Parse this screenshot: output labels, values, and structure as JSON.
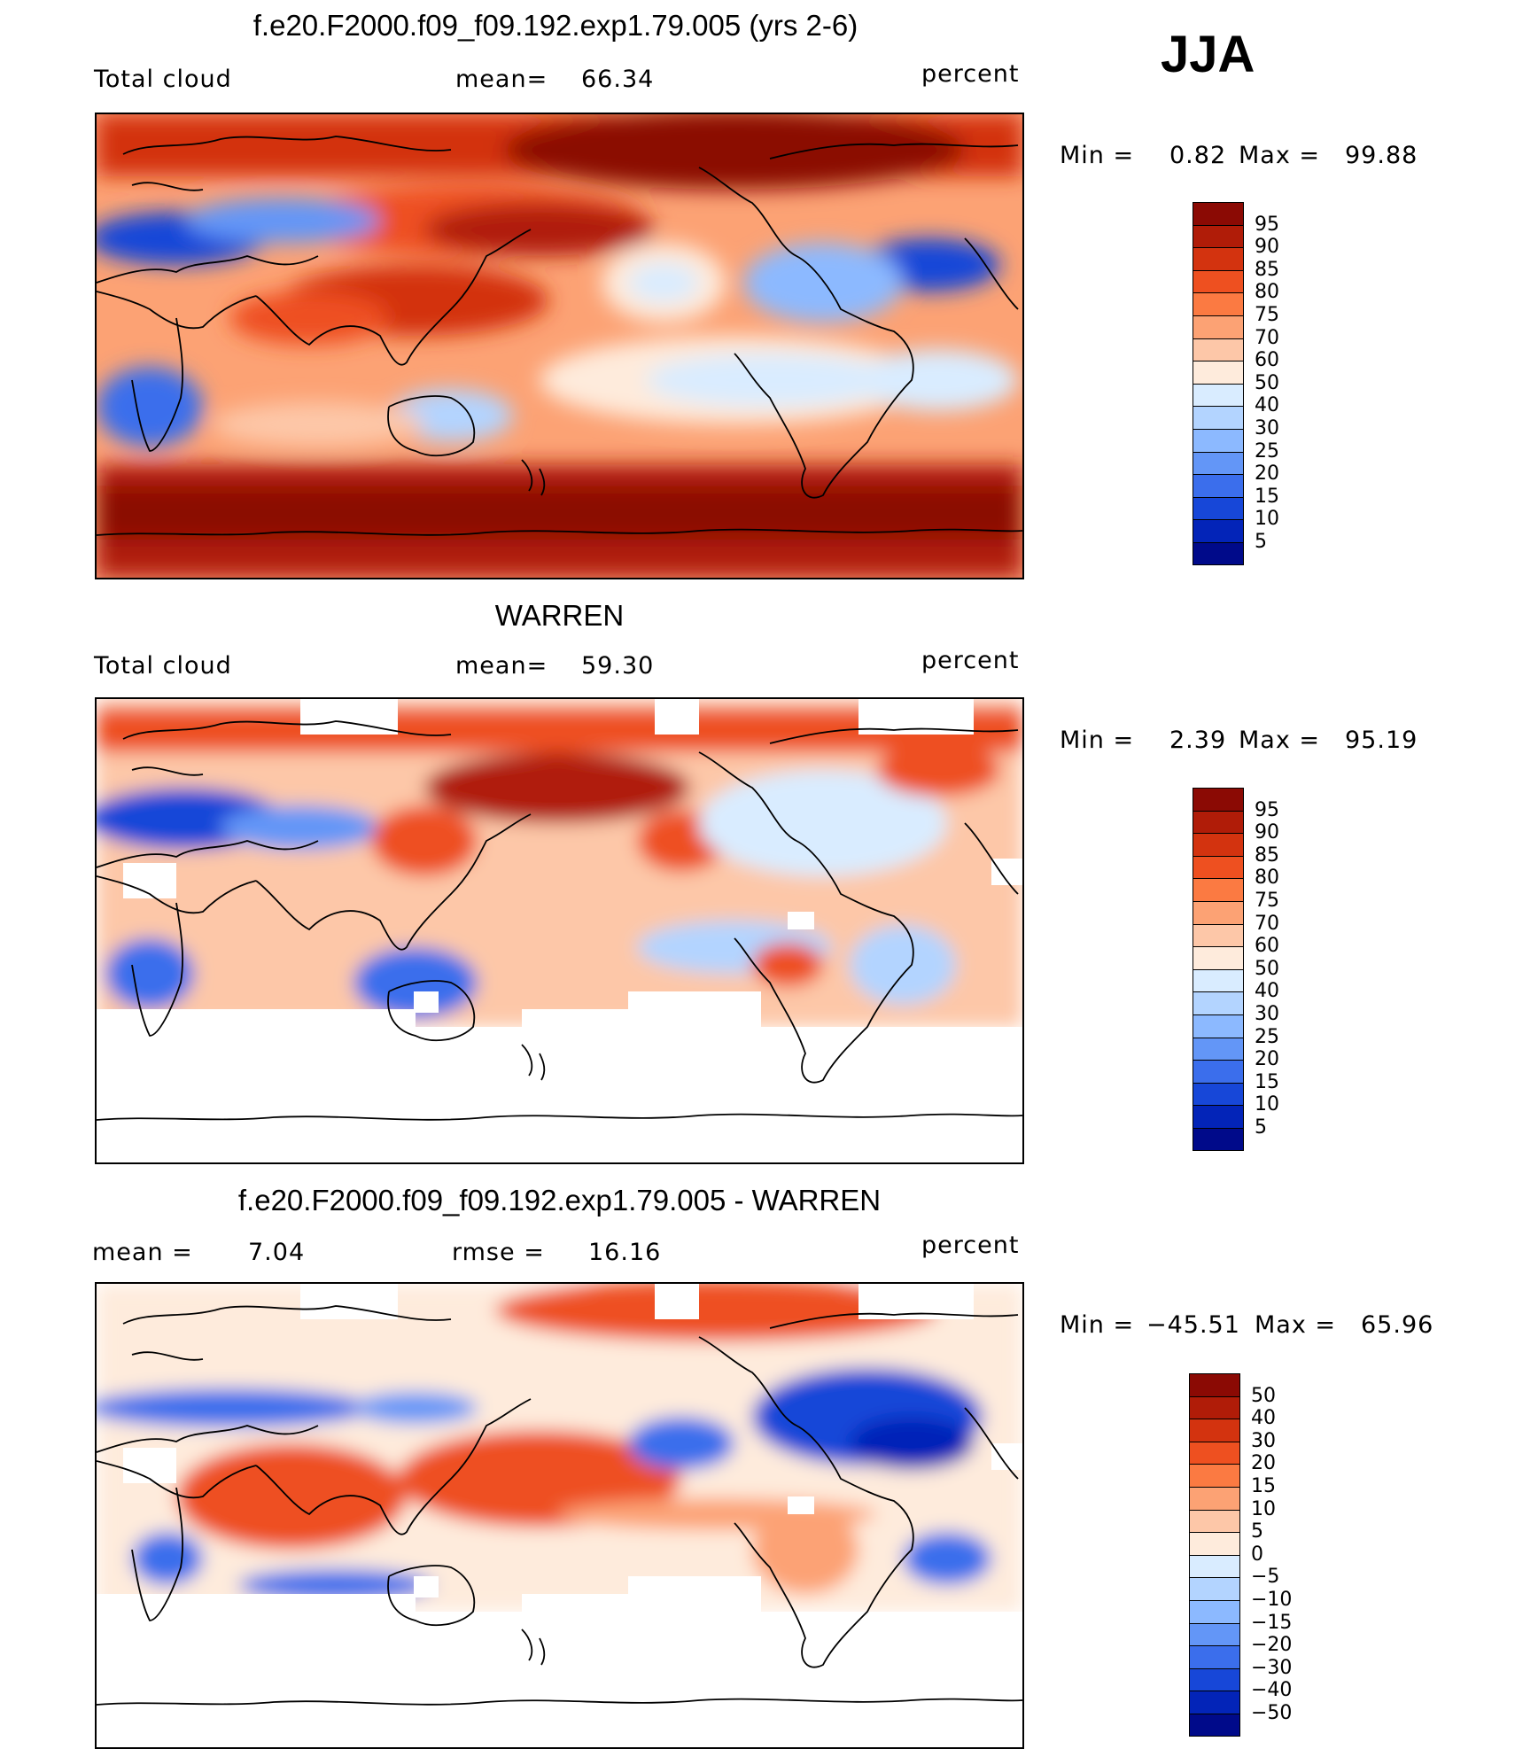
{
  "season": "JJA",
  "panels": [
    {
      "title": "f.e20.F2000.f09_f09.192.exp1.79.005 (yrs 2-6)",
      "left_label": "Total cloud",
      "center_label": "mean=",
      "center_value": "66.34",
      "units": "percent",
      "min_label": "Min =",
      "min_value": "0.82",
      "max_label": "Max =",
      "max_value": "99.88",
      "colorbar": {
        "labels": [
          "95",
          "90",
          "85",
          "80",
          "75",
          "70",
          "60",
          "50",
          "40",
          "30",
          "25",
          "20",
          "15",
          "10",
          "5"
        ],
        "colors": [
          "#8b0a04",
          "#b01c08",
          "#d3330f",
          "#ee5020",
          "#fb7a42",
          "#fca274",
          "#fdc7a8",
          "#feebdc",
          "#d9ecff",
          "#b3d4ff",
          "#8cb9ff",
          "#6396f7",
          "#3b6eec",
          "#1747d8",
          "#0324b8",
          "#000a8a"
        ]
      }
    },
    {
      "title": "WARREN",
      "left_label": "Total cloud",
      "center_label": "mean=",
      "center_value": "59.30",
      "units": "percent",
      "min_label": "Min =",
      "min_value": "2.39",
      "max_label": "Max =",
      "max_value": "95.19",
      "colorbar": {
        "labels": [
          "95",
          "90",
          "85",
          "80",
          "75",
          "70",
          "60",
          "50",
          "40",
          "30",
          "25",
          "20",
          "15",
          "10",
          "5"
        ],
        "colors": [
          "#8b0a04",
          "#b01c08",
          "#d3330f",
          "#ee5020",
          "#fb7a42",
          "#fca274",
          "#fdc7a8",
          "#feebdc",
          "#d9ecff",
          "#b3d4ff",
          "#8cb9ff",
          "#6396f7",
          "#3b6eec",
          "#1747d8",
          "#0324b8",
          "#000a8a"
        ]
      }
    },
    {
      "title": "f.e20.F2000.f09_f09.192.exp1.79.005 - WARREN",
      "left_label": "mean =",
      "left_value": "7.04",
      "center_label": "rmse =",
      "center_value": "16.16",
      "units": "percent",
      "min_label": "Min =",
      "min_value": "−45.51",
      "max_label": "Max =",
      "max_value": "65.96",
      "colorbar": {
        "labels": [
          "50",
          "40",
          "30",
          "20",
          "15",
          "10",
          "5",
          "0",
          "−5",
          "−10",
          "−15",
          "−20",
          "−30",
          "−40",
          "−50"
        ],
        "colors": [
          "#8b0a04",
          "#b01c08",
          "#d3330f",
          "#ee5020",
          "#fb7a42",
          "#fca274",
          "#fdc7a8",
          "#feebdc",
          "#d9ecff",
          "#b3d4ff",
          "#8cb9ff",
          "#6396f7",
          "#3b6eec",
          "#1747d8",
          "#0324b8",
          "#000a8a"
        ]
      }
    }
  ]
}
